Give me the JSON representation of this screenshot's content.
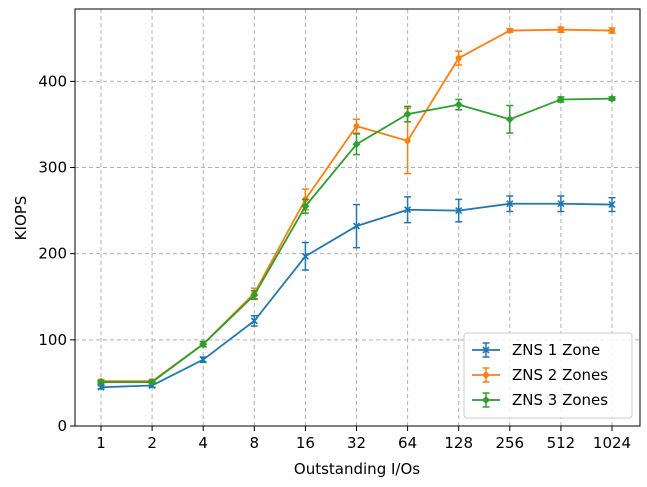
{
  "chart_data": {
    "type": "line",
    "title": "",
    "xlabel": "Outstanding I/Os",
    "ylabel": "KIOPS",
    "categories": [
      "1",
      "2",
      "4",
      "8",
      "16",
      "32",
      "64",
      "128",
      "256",
      "512",
      "1024"
    ],
    "ylim": [
      0,
      484
    ],
    "yticks": [
      "0",
      "100",
      "200",
      "300",
      "400"
    ],
    "grid": true,
    "legend_position": "lower-right",
    "series": [
      {
        "name": "ZNS 1 Zone",
        "color": "#1f77b4",
        "marker": "x",
        "values": [
          45,
          47,
          77,
          122,
          197,
          232,
          251,
          250,
          258,
          258,
          257
        ],
        "errors": [
          2,
          2,
          3,
          6,
          16,
          25,
          15,
          13,
          9,
          9,
          8
        ]
      },
      {
        "name": "ZNS 2 Zones",
        "color": "#ff7f0e",
        "marker": "circle",
        "values": [
          52,
          52,
          95,
          154,
          263,
          348,
          331,
          427,
          459,
          460,
          459
        ],
        "errors": [
          2,
          2,
          3,
          6,
          12,
          8,
          38,
          8,
          2,
          3,
          3
        ]
      },
      {
        "name": "ZNS 3 Zones",
        "color": "#2ca02c",
        "marker": "diamond",
        "values": [
          51,
          51,
          95,
          152,
          255,
          327,
          362,
          373,
          356,
          379,
          380
        ],
        "errors": [
          2,
          2,
          3,
          5,
          8,
          12,
          9,
          6,
          16,
          3,
          2
        ]
      }
    ]
  }
}
